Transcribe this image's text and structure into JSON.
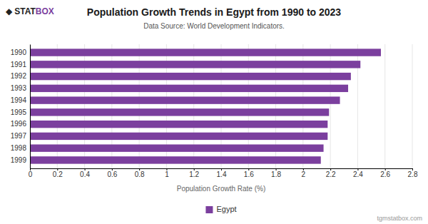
{
  "chart_data": {
    "type": "bar",
    "orientation": "horizontal",
    "title": "Population Growth Trends in Egypt from 1990 to 2023",
    "subtitle": "Data Source: World Development Indicators.",
    "xlabel": "Population Growth Rate (%)",
    "categories": [
      "1990",
      "1991",
      "1992",
      "1993",
      "1994",
      "1995",
      "1996",
      "1997",
      "1998",
      "1999"
    ],
    "series": [
      {
        "name": "Egypt",
        "color": "#7B3F9E",
        "values": [
          2.57,
          2.42,
          2.35,
          2.33,
          2.27,
          2.19,
          2.18,
          2.18,
          2.15,
          2.13
        ]
      }
    ],
    "xlim": [
      0,
      2.8
    ],
    "xticks": [
      0,
      0.2,
      0.4,
      0.6,
      0.8,
      1,
      1.2,
      1.4,
      1.6,
      1.8,
      2,
      2.2,
      2.4,
      2.6,
      2.8
    ],
    "grid": true,
    "legend": "bottom",
    "annotations": [
      "◆",
      "STAT",
      "BOX",
      "tgmstatbox.com"
    ]
  }
}
